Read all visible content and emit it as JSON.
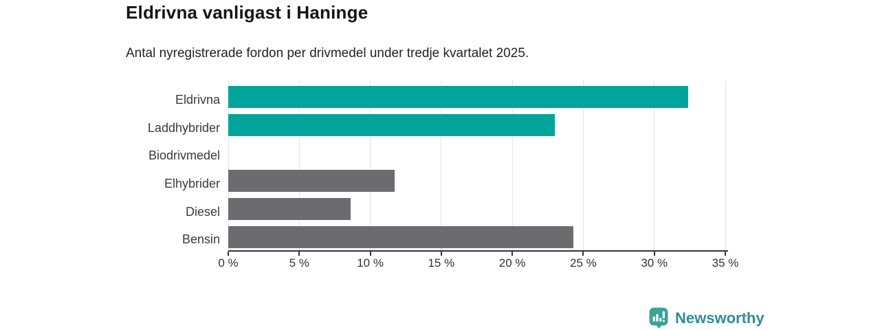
{
  "header": {
    "title": "Eldrivna vanligast i Haninge",
    "subtitle": "Antal nyregistrerade fordon per drivmedel under tredje kvartalet 2025."
  },
  "chart_data": {
    "type": "bar",
    "orientation": "horizontal",
    "title": "Eldrivna vanligast i Haninge",
    "subtitle": "Antal nyregistrerade fordon per drivmedel under tredje kvartalet 2025.",
    "categories": [
      "Eldrivna",
      "Laddhybrider",
      "Biodrivmedel",
      "Elhybrider",
      "Diesel",
      "Bensin"
    ],
    "values": [
      32.4,
      23.0,
      0,
      11.7,
      8.6,
      24.3
    ],
    "unit": "%",
    "xlim": [
      0,
      35
    ],
    "x_ticks": [
      0,
      5,
      10,
      15,
      20,
      25,
      30,
      35
    ],
    "x_tick_suffix": " %",
    "grid": true,
    "legend": false,
    "bar_colors": [
      "#00a49a",
      "#00a49a",
      "#6b6b70",
      "#6b6b70",
      "#6b6b70",
      "#6b6b70"
    ],
    "highlight_color": "#00a49a",
    "default_bar_color": "#6b6b70",
    "gridline_color": "#e3e3e3",
    "axis_color": "#333333"
  },
  "branding": {
    "logo_text": "Newsworthy",
    "logo_icon": "bar-chart-speech-bubble-icon",
    "logo_text_color": "#2e8d99",
    "logo_icon_color": "#3ba295"
  }
}
